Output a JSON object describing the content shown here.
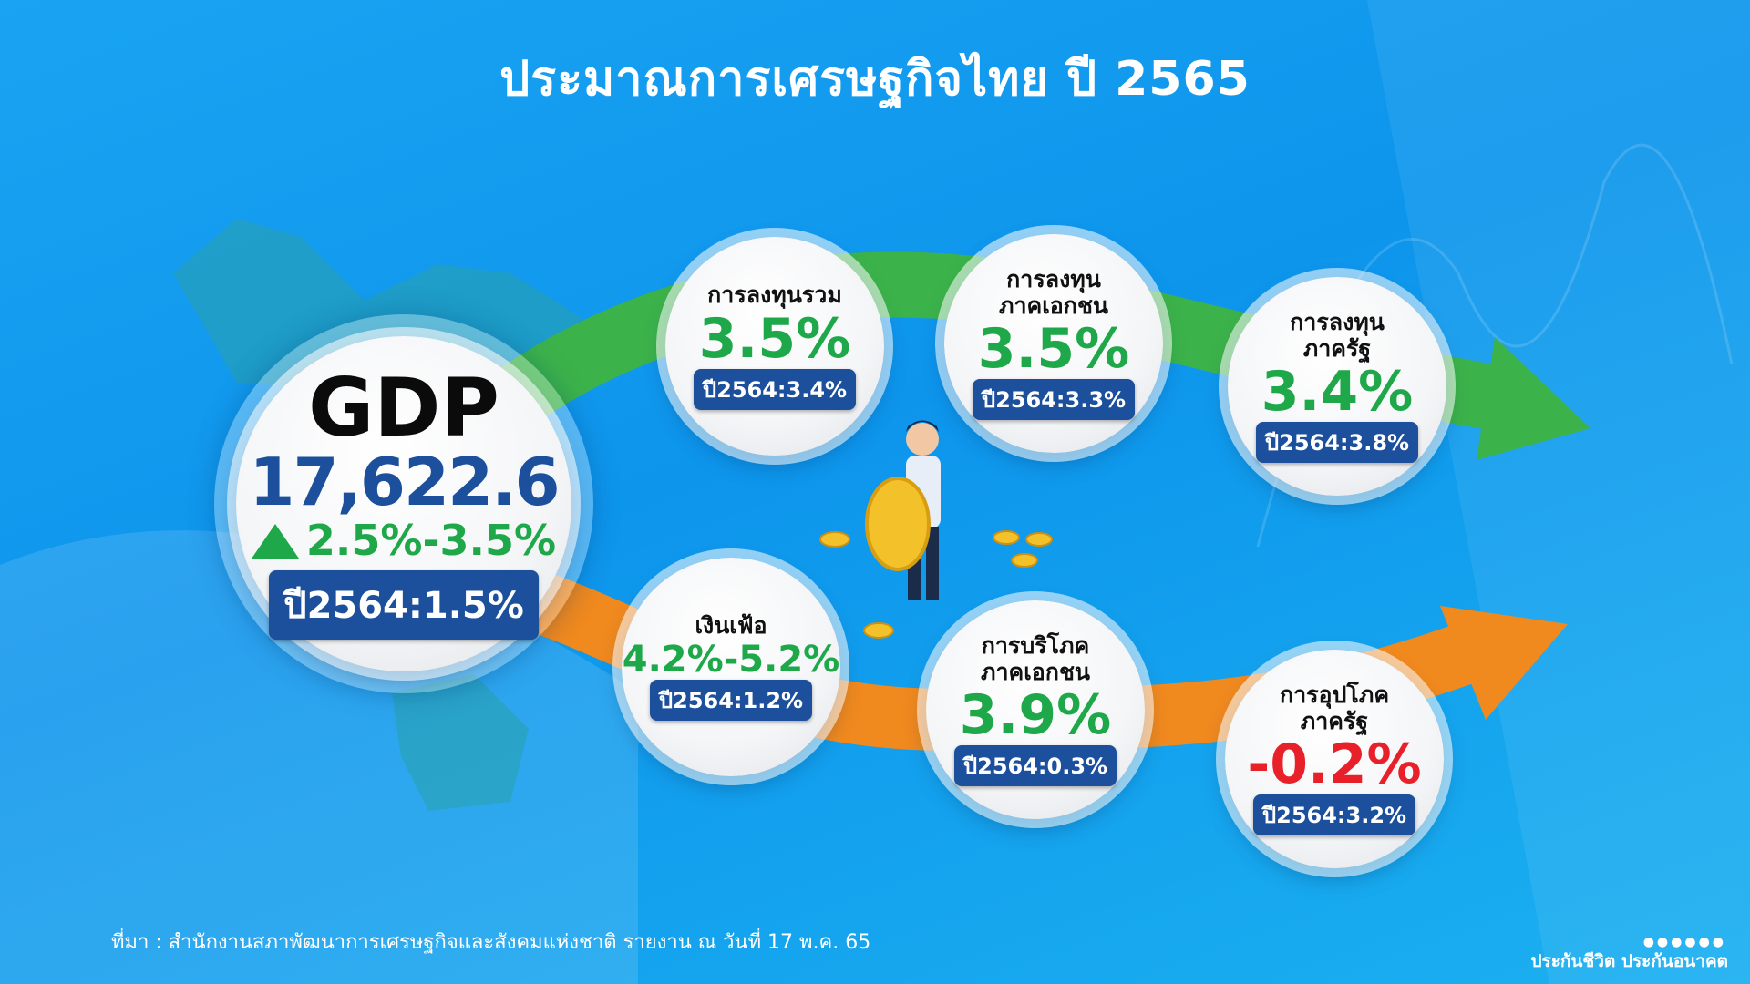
{
  "title": "ประมาณการเศรษฐกิจไทย ปี 2565",
  "gdp": {
    "label": "GDP",
    "value": "17,622.6",
    "growth": "2.5%-3.5%",
    "previous": "ปี2564:1.5%"
  },
  "indicators": [
    {
      "label": "การลงทุนรวม",
      "value": "3.5%",
      "previous": "ปี2564:3.4%",
      "color": "#1ea84a"
    },
    {
      "label": "การลงทุน\nภาคเอกชน",
      "value": "3.5%",
      "previous": "ปี2564:3.3%",
      "color": "#1ea84a"
    },
    {
      "label": "การลงทุน\nภาครัฐ",
      "value": "3.4%",
      "previous": "ปี2564:3.8%",
      "color": "#1ea84a"
    },
    {
      "label": "เงินเฟ้อ",
      "value": "4.2%-5.2%",
      "previous": "ปี2564:1.2%",
      "color": "#1ea84a"
    },
    {
      "label": "การบริโภค\nภาคเอกชน",
      "value": "3.9%",
      "previous": "ปี2564:0.3%",
      "color": "#1ea84a"
    },
    {
      "label": "การอุปโภค\nภาครัฐ",
      "value": "-0.2%",
      "previous": "ปี2564:3.2%",
      "color": "#e8202a"
    }
  ],
  "source": "ที่มา : สำนักงานสภาพัฒนาการเศรษฐกิจและสังคมแห่งชาติ รายงาน ณ วันที่ 17 พ.ค. 65",
  "brand": "ประกันชีวิต ประกันอนาคต"
}
